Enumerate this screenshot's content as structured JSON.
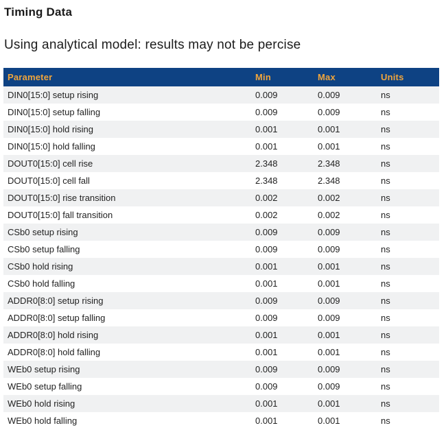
{
  "page": {
    "title": "Timing Data",
    "subtitle": "Using analytical model: results may not be percise"
  },
  "colors": {
    "table_header_bg": "#0e4283",
    "table_header_text": "#f0a53c",
    "row_stripe_bg": "#f0f1f2",
    "body_text": "#222222"
  },
  "table": {
    "columns": [
      "Parameter",
      "Min",
      "Max",
      "Units"
    ],
    "rows": [
      {
        "parameter": "DIN0[15:0] setup rising",
        "min": "0.009",
        "max": "0.009",
        "units": "ns"
      },
      {
        "parameter": "DIN0[15:0] setup falling",
        "min": "0.009",
        "max": "0.009",
        "units": "ns"
      },
      {
        "parameter": "DIN0[15:0] hold rising",
        "min": "0.001",
        "max": "0.001",
        "units": "ns"
      },
      {
        "parameter": "DIN0[15:0] hold falling",
        "min": "0.001",
        "max": "0.001",
        "units": "ns"
      },
      {
        "parameter": "DOUT0[15:0] cell rise",
        "min": "2.348",
        "max": "2.348",
        "units": "ns"
      },
      {
        "parameter": "DOUT0[15:0] cell fall",
        "min": "2.348",
        "max": "2.348",
        "units": "ns"
      },
      {
        "parameter": "DOUT0[15:0] rise transition",
        "min": "0.002",
        "max": "0.002",
        "units": "ns"
      },
      {
        "parameter": "DOUT0[15:0] fall transition",
        "min": "0.002",
        "max": "0.002",
        "units": "ns"
      },
      {
        "parameter": "CSb0 setup rising",
        "min": "0.009",
        "max": "0.009",
        "units": "ns"
      },
      {
        "parameter": "CSb0 setup falling",
        "min": "0.009",
        "max": "0.009",
        "units": "ns"
      },
      {
        "parameter": "CSb0 hold rising",
        "min": "0.001",
        "max": "0.001",
        "units": "ns"
      },
      {
        "parameter": "CSb0 hold falling",
        "min": "0.001",
        "max": "0.001",
        "units": "ns"
      },
      {
        "parameter": "ADDR0[8:0] setup rising",
        "min": "0.009",
        "max": "0.009",
        "units": "ns"
      },
      {
        "parameter": "ADDR0[8:0] setup falling",
        "min": "0.009",
        "max": "0.009",
        "units": "ns"
      },
      {
        "parameter": "ADDR0[8:0] hold rising",
        "min": "0.001",
        "max": "0.001",
        "units": "ns"
      },
      {
        "parameter": "ADDR0[8:0] hold falling",
        "min": "0.001",
        "max": "0.001",
        "units": "ns"
      },
      {
        "parameter": "WEb0 setup rising",
        "min": "0.009",
        "max": "0.009",
        "units": "ns"
      },
      {
        "parameter": "WEb0 setup falling",
        "min": "0.009",
        "max": "0.009",
        "units": "ns"
      },
      {
        "parameter": "WEb0 hold rising",
        "min": "0.001",
        "max": "0.001",
        "units": "ns"
      },
      {
        "parameter": "WEb0 hold falling",
        "min": "0.001",
        "max": "0.001",
        "units": "ns"
      }
    ]
  }
}
